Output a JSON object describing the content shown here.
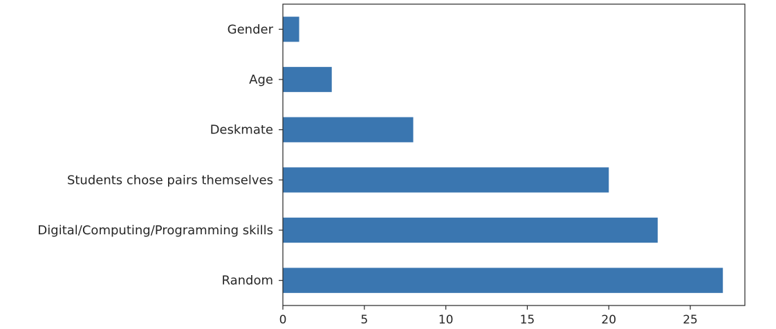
{
  "chart_data": {
    "type": "bar",
    "orientation": "horizontal",
    "title": "",
    "xlabel": "",
    "ylabel": "",
    "categories": [
      "Random",
      "Digital/Computing/Programming skills",
      "Students chose pairs themselves",
      "Deskmate",
      "Age",
      "Gender"
    ],
    "values": [
      27,
      23,
      20,
      8,
      3,
      1
    ],
    "xlim": [
      0,
      28.35
    ],
    "xticks": [
      0,
      5,
      10,
      15,
      20,
      25
    ],
    "grid": false,
    "legend": "none",
    "bar_color": "#3a76b0"
  }
}
